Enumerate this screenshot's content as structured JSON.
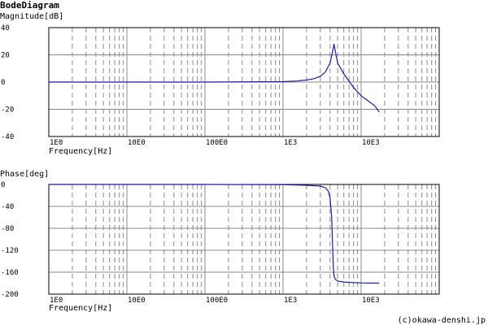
{
  "title": "BodeDiagram",
  "credit": "(c)okawa-denshi.jp",
  "colors": {
    "trace": "#1a1aaa",
    "grid_major": "#888888",
    "grid_minor": "#888888",
    "frame": "#000000"
  },
  "chart_data": [
    {
      "type": "line",
      "ylabel": "Magnitude[dB]",
      "xlabel": "Frequency[Hz]",
      "x_scale": "log",
      "xlim": [
        1,
        100000
      ],
      "ylim": [
        -40,
        40
      ],
      "yticks": [
        40,
        20,
        0,
        -20,
        -40
      ],
      "xticks": [
        {
          "value": 1,
          "label": "1E0"
        },
        {
          "value": 10,
          "label": "10E0"
        },
        {
          "value": 100,
          "label": "100E0"
        },
        {
          "value": 1000,
          "label": "1E3"
        },
        {
          "value": 10000,
          "label": "10E3"
        }
      ],
      "grid": true,
      "series": [
        {
          "x": [
            1,
            10,
            100,
            1000,
            1500,
            2000,
            2500,
            3000,
            3500,
            4000,
            4300,
            4500,
            4700,
            5000,
            6000,
            8000,
            10000,
            15000,
            17000
          ],
          "y": [
            0,
            0,
            0,
            0.3,
            0.8,
            1.5,
            2.5,
            4.2,
            7.5,
            14,
            22,
            28,
            22,
            14,
            6,
            -4,
            -10,
            -17.5,
            -22
          ]
        }
      ]
    },
    {
      "type": "line",
      "ylabel": "Phase[deg]",
      "xlabel": "Frequency[Hz]",
      "x_scale": "log",
      "xlim": [
        1,
        100000
      ],
      "ylim": [
        -200,
        0
      ],
      "yticks": [
        0,
        -40,
        -80,
        -120,
        -160,
        -200
      ],
      "xticks": [
        {
          "value": 1,
          "label": "1E0"
        },
        {
          "value": 10,
          "label": "10E0"
        },
        {
          "value": 100,
          "label": "100E0"
        },
        {
          "value": 1000,
          "label": "1E3"
        },
        {
          "value": 10000,
          "label": "10E3"
        }
      ],
      "grid": true,
      "series": [
        {
          "x": [
            1,
            10,
            100,
            1000,
            2000,
            3000,
            3500,
            3800,
            4000,
            4200,
            4400,
            4500,
            4700,
            5000,
            6000,
            8000,
            10000,
            17000
          ],
          "y": [
            0,
            0,
            0,
            -0.5,
            -1.5,
            -3,
            -6,
            -12,
            -25,
            -60,
            -150,
            -168,
            -173,
            -176,
            -178,
            -179,
            -179.5,
            -180
          ]
        }
      ]
    }
  ]
}
